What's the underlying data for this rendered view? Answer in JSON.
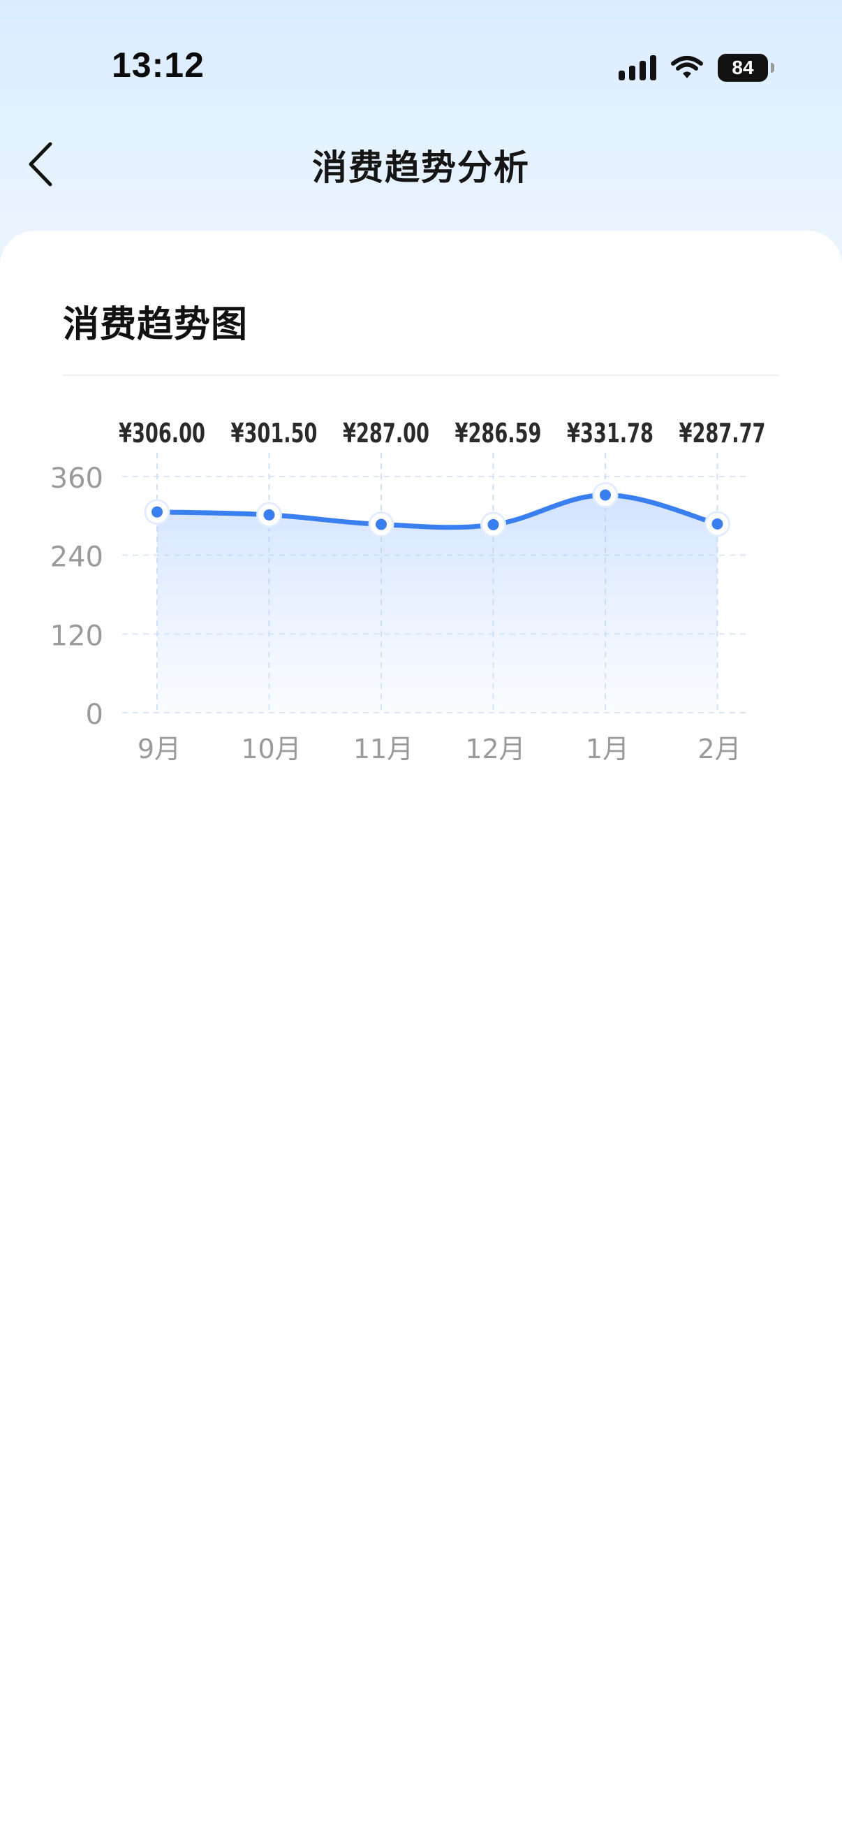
{
  "status_bar": {
    "time": "13:12",
    "battery": "84",
    "icons": [
      "signal-icon",
      "wifi-icon",
      "battery-icon"
    ]
  },
  "nav": {
    "title": "消费趋势分析",
    "back_icon": "chevron-left-icon"
  },
  "card": {
    "section_title": "消费趋势图"
  },
  "colors": {
    "accent": "#3a7ff0",
    "grid": "#dbe6f5",
    "axis_text": "#9a9a9a",
    "label_text": "#2a2a2a"
  },
  "chart_data": {
    "type": "line",
    "categories": [
      "9月",
      "10月",
      "11月",
      "12月",
      "1月",
      "2月"
    ],
    "values": [
      306.0,
      301.5,
      287.0,
      286.59,
      331.78,
      287.77
    ],
    "value_labels": [
      "¥306.00",
      "¥301.50",
      "¥287.00",
      "¥286.59",
      "¥331.78",
      "¥287.77"
    ],
    "y_ticks": [
      0,
      120,
      240,
      360
    ],
    "ylim": [
      0,
      360
    ],
    "grid": true,
    "smooth": true,
    "area_fill": true
  }
}
